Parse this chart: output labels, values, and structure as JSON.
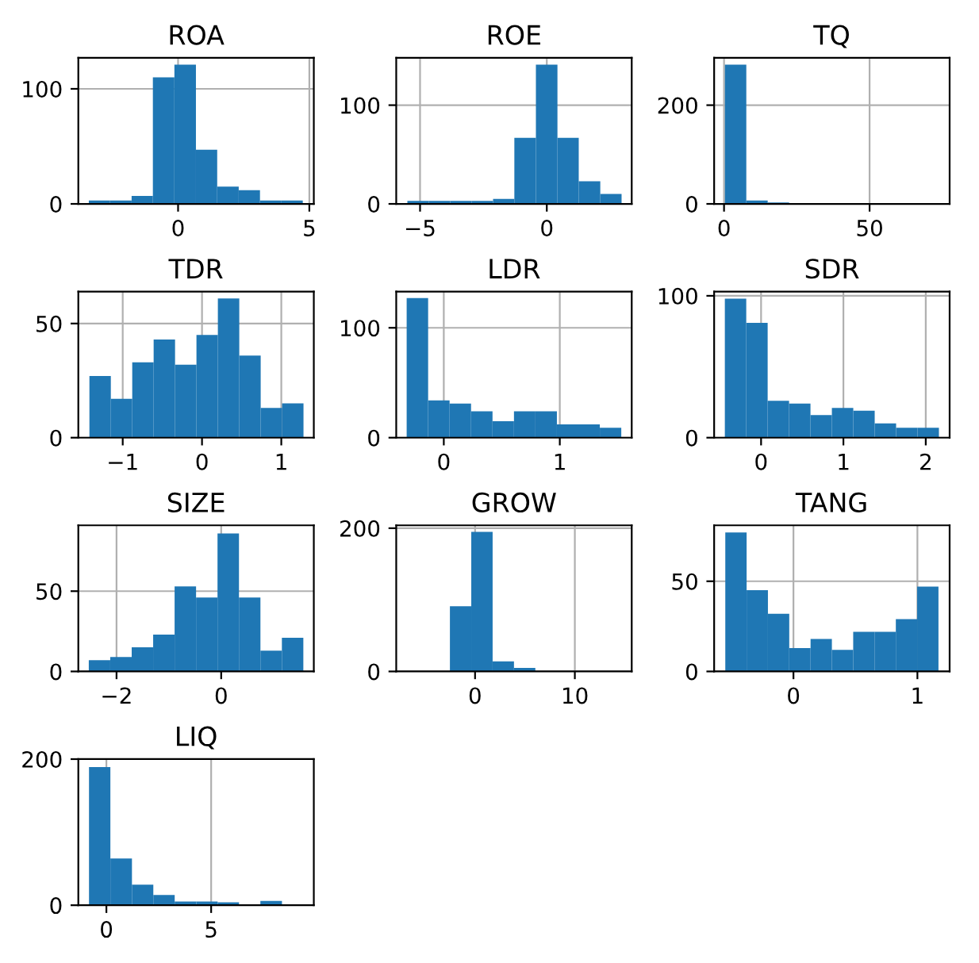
{
  "chart_data": [
    {
      "type": "histogram",
      "title": "ROA",
      "color": "#1f77b4",
      "grid": true,
      "bins": [
        -3.4,
        -2.59,
        -1.77,
        -0.96,
        -0.14,
        0.68,
        1.49,
        2.31,
        3.12,
        3.94,
        4.75
      ],
      "values": [
        3,
        3,
        7,
        110,
        121,
        47,
        15,
        12,
        3,
        3
      ],
      "xlim": [
        -3.8,
        5.17
      ],
      "ylim": [
        0,
        127
      ],
      "xticks": [
        0,
        5
      ],
      "yticks": [
        0,
        100
      ]
    },
    {
      "type": "histogram",
      "title": "ROE",
      "color": "#1f77b4",
      "grid": true,
      "bins": [
        -5.5,
        -4.66,
        -3.81,
        -2.97,
        -2.12,
        -1.28,
        -0.43,
        0.42,
        1.26,
        2.11,
        2.95
      ],
      "values": [
        3,
        3,
        3,
        3,
        5,
        67,
        141,
        67,
        23,
        10
      ],
      "xlim": [
        -5.94,
        3.35
      ],
      "ylim": [
        0,
        148
      ],
      "xticks": [
        {
          "value": -5,
          "label": "−5"
        },
        0
      ],
      "yticks": [
        0,
        100
      ]
    },
    {
      "type": "histogram",
      "title": "TQ",
      "color": "#1f77b4",
      "grid": true,
      "bins": [
        0.3,
        7.65,
        15,
        22.35,
        29.7,
        37.05,
        44.4,
        51.75,
        59.1,
        66.45,
        73.8
      ],
      "values": [
        282,
        7,
        3,
        null,
        null,
        null,
        0,
        0,
        0,
        null
      ],
      "xlim": [
        -3.4,
        77.5
      ],
      "ylim": [
        0,
        296
      ],
      "xticks": [
        0,
        50
      ],
      "yticks": [
        0,
        200
      ]
    },
    {
      "type": "histogram",
      "title": "TDR",
      "color": "#1f77b4",
      "grid": true,
      "bins": [
        -1.42,
        -1.15,
        -0.88,
        -0.61,
        -0.34,
        -0.07,
        0.2,
        0.47,
        0.74,
        1.01,
        1.28
      ],
      "values": [
        27,
        17,
        33,
        43,
        32,
        45,
        61,
        36,
        13,
        15
      ],
      "xlim": [
        -1.56,
        1.41
      ],
      "ylim": [
        0,
        64
      ],
      "xticks": [
        {
          "value": -1,
          "label": "−1"
        },
        0,
        1
      ],
      "yticks": [
        0,
        50
      ]
    },
    {
      "type": "histogram",
      "title": "LDR",
      "color": "#1f77b4",
      "grid": true,
      "bins": [
        -0.32,
        -0.135,
        0.05,
        0.235,
        0.42,
        0.605,
        0.79,
        0.975,
        1.16,
        1.345,
        1.53
      ],
      "values": [
        127,
        34,
        31,
        24,
        15,
        24,
        24,
        12,
        12,
        9
      ],
      "xlim": [
        -0.41,
        1.62
      ],
      "ylim": [
        0,
        133
      ],
      "xticks": [
        0,
        1
      ],
      "yticks": [
        0,
        100
      ]
    },
    {
      "type": "histogram",
      "title": "SDR",
      "color": "#1f77b4",
      "grid": true,
      "bins": [
        -0.44,
        -0.18,
        0.08,
        0.34,
        0.6,
        0.86,
        1.12,
        1.38,
        1.64,
        1.9,
        2.16
      ],
      "values": [
        98,
        81,
        26,
        24,
        16,
        21,
        19,
        10,
        7,
        7
      ],
      "xlim": [
        -0.57,
        2.29
      ],
      "ylim": [
        0,
        103
      ],
      "xticks": [
        0,
        1,
        2
      ],
      "yticks": [
        0,
        100
      ]
    },
    {
      "type": "histogram",
      "title": "SIZE",
      "color": "#1f77b4",
      "grid": true,
      "bins": [
        -2.53,
        -2.12,
        -1.71,
        -1.3,
        -0.89,
        -0.48,
        -0.07,
        0.34,
        0.75,
        1.16,
        1.57
      ],
      "values": [
        7,
        9,
        15,
        23,
        53,
        46,
        86,
        46,
        13,
        21
      ],
      "xlim": [
        -2.73,
        1.77
      ],
      "ylim": [
        0,
        91
      ],
      "xticks": [
        {
          "value": -2,
          "label": "−2"
        },
        0
      ],
      "yticks": [
        0,
        50
      ]
    },
    {
      "type": "histogram",
      "title": "GROW",
      "color": "#1f77b4",
      "grid": true,
      "bins": [
        -6.8,
        -4.66,
        -2.52,
        -0.38,
        1.76,
        3.9,
        6.04,
        8.18,
        10.32,
        12.46,
        14.6
      ],
      "values": [
        null,
        0,
        91,
        195,
        14,
        5,
        null,
        0,
        0,
        null
      ],
      "xlim": [
        -7.9,
        15.7
      ],
      "ylim": [
        0,
        204
      ],
      "xticks": [
        0,
        10
      ],
      "yticks": [
        0,
        200
      ]
    },
    {
      "type": "histogram",
      "title": "TANG",
      "color": "#1f77b4",
      "grid": true,
      "bins": [
        -0.55,
        -0.378,
        -0.206,
        -0.034,
        0.138,
        0.31,
        0.482,
        0.654,
        0.826,
        0.998,
        1.17
      ],
      "values": [
        77,
        45,
        32,
        13,
        18,
        12,
        22,
        22,
        29,
        47
      ],
      "xlim": [
        -0.64,
        1.26
      ],
      "ylim": [
        0,
        81
      ],
      "xticks": [
        0,
        1
      ],
      "yticks": [
        0,
        50
      ]
    },
    {
      "type": "histogram",
      "title": "LIQ",
      "color": "#1f77b4",
      "grid": true,
      "bins": [
        -0.83,
        0.19,
        1.22,
        2.24,
        3.26,
        4.29,
        5.31,
        6.33,
        7.35,
        8.38,
        9.4
      ],
      "values": [
        189,
        64,
        28,
        14,
        5,
        5,
        4,
        1,
        6,
        1
      ],
      "xlim": [
        -1.34,
        9.9
      ],
      "ylim": [
        0,
        200
      ],
      "xticks": [
        0,
        5
      ],
      "yticks": [
        0,
        200
      ]
    }
  ]
}
